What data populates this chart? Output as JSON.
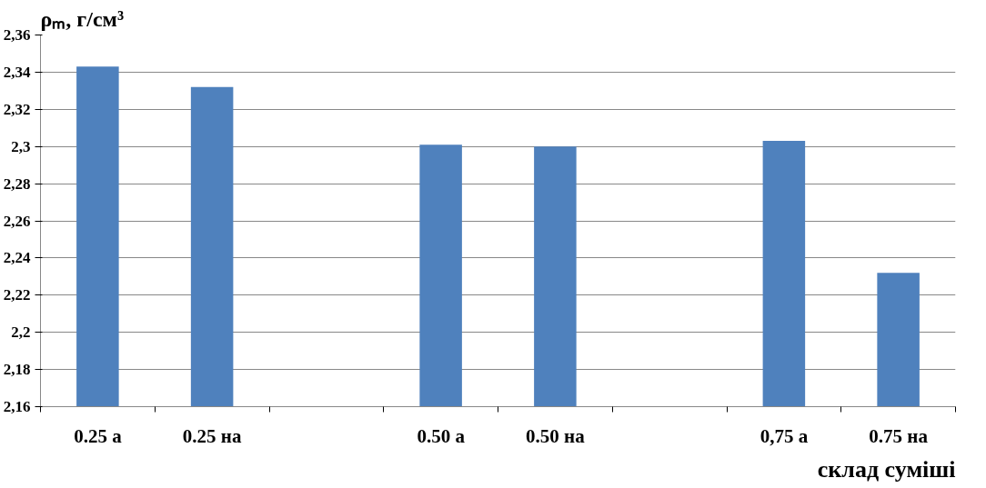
{
  "chart_data": {
    "type": "bar",
    "ylabel": "ρₘ, г/см³",
    "xlabel": "склад суміші",
    "categories": [
      "0.25 а",
      "0.25 на",
      null,
      "0.50 а",
      "0.50 на",
      null,
      "0,75 а",
      "0.75 на"
    ],
    "values": [
      2.343,
      2.332,
      null,
      2.301,
      2.3,
      null,
      2.303,
      2.232
    ],
    "color": "#4f81bd",
    "ylim": [
      2.16,
      2.36
    ],
    "yticks": [
      {
        "value": 2.16,
        "label": "2,16"
      },
      {
        "value": 2.18,
        "label": "2,18"
      },
      {
        "value": 2.2,
        "label": "2,2"
      },
      {
        "value": 2.22,
        "label": "2,22"
      },
      {
        "value": 2.24,
        "label": "2,24"
      },
      {
        "value": 2.26,
        "label": "2,26"
      },
      {
        "value": 2.28,
        "label": "2,28"
      },
      {
        "value": 2.3,
        "label": "2,3"
      },
      {
        "value": 2.32,
        "label": "2,32"
      },
      {
        "value": 2.34,
        "label": "2,34"
      },
      {
        "value": 2.36,
        "label": "2,36"
      }
    ],
    "grid": "y"
  }
}
